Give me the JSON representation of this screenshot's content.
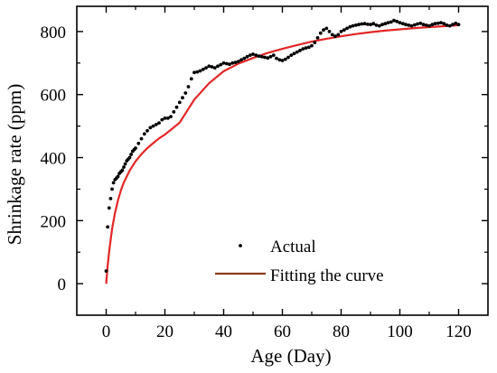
{
  "chart_data": {
    "type": "scatter",
    "title": "",
    "xlabel": "Age (Day)",
    "ylabel": "Shrinkage rate (ppm)",
    "xlim": [
      -10,
      130
    ],
    "ylim": [
      -100,
      880
    ],
    "x_ticks": [
      0,
      20,
      40,
      60,
      80,
      100,
      120
    ],
    "y_ticks": [
      0,
      200,
      400,
      600,
      800
    ],
    "grid": false,
    "legend_position": "bottom-right",
    "series": [
      {
        "name": "Actual",
        "kind": "scatter",
        "color": "#000000",
        "x": [
          0,
          0.5,
          1,
          1.5,
          2,
          2.5,
          3,
          3.5,
          4,
          4.5,
          5,
          5.5,
          6,
          6.5,
          7,
          7.5,
          8,
          8.5,
          9,
          9.5,
          10,
          11,
          12,
          13,
          14,
          15,
          16,
          17,
          18,
          19,
          20,
          21,
          22,
          23,
          24,
          25,
          26,
          27,
          28,
          29,
          30,
          31,
          32,
          33,
          34,
          35,
          36,
          37,
          38,
          39,
          40,
          41,
          42,
          43,
          44,
          45,
          46,
          47,
          48,
          49,
          50,
          51,
          52,
          53,
          54,
          55,
          56,
          57,
          58,
          59,
          60,
          61,
          62,
          63,
          64,
          65,
          66,
          67,
          68,
          69,
          70,
          71,
          72,
          73,
          74,
          75,
          76,
          77,
          78,
          79,
          80,
          81,
          82,
          83,
          84,
          85,
          86,
          87,
          88,
          89,
          90,
          91,
          92,
          93,
          94,
          95,
          96,
          97,
          98,
          99,
          100,
          101,
          102,
          103,
          104,
          105,
          106,
          107,
          108,
          109,
          110,
          111,
          112,
          113,
          114,
          115,
          116,
          117,
          118,
          119,
          120
        ],
        "y": [
          40,
          180,
          240,
          270,
          300,
          320,
          330,
          335,
          340,
          350,
          355,
          360,
          370,
          380,
          390,
          395,
          400,
          410,
          420,
          425,
          430,
          445,
          460,
          475,
          485,
          495,
          500,
          505,
          510,
          520,
          525,
          525,
          530,
          545,
          560,
          575,
          590,
          605,
          625,
          650,
          670,
          672,
          675,
          680,
          685,
          690,
          688,
          685,
          690,
          695,
          700,
          698,
          696,
          700,
          702,
          705,
          710,
          715,
          720,
          725,
          728,
          725,
          722,
          720,
          718,
          716,
          720,
          725,
          715,
          710,
          708,
          712,
          718,
          725,
          730,
          735,
          740,
          745,
          748,
          750,
          755,
          765,
          780,
          795,
          805,
          810,
          800,
          790,
          785,
          790,
          800,
          805,
          810,
          815,
          818,
          820,
          822,
          824,
          825,
          823,
          822,
          825,
          820,
          818,
          822,
          825,
          828,
          830,
          835,
          832,
          828,
          825,
          822,
          820,
          818,
          821,
          824,
          826,
          822,
          820,
          818,
          822,
          825,
          826,
          828,
          825,
          820,
          818,
          822,
          826,
          822
        ]
      },
      {
        "name": "Fitting the curve",
        "kind": "line",
        "color": "#e32626",
        "legend_color": "#8b3a1a",
        "x": [
          0,
          0.5,
          1,
          2,
          3,
          4,
          5,
          6,
          8,
          10,
          12,
          14,
          16,
          18,
          20,
          25,
          30,
          35,
          40,
          45,
          50,
          55,
          60,
          65,
          70,
          75,
          80,
          85,
          90,
          95,
          100,
          105,
          110,
          115,
          120
        ],
        "y": [
          0,
          56,
          102,
          173,
          225,
          264,
          296,
          321,
          359,
          388,
          411,
          430,
          446,
          461,
          473,
          511,
          584,
          636,
          674,
          698,
          716,
          732,
          745,
          757,
          768,
          777,
          785,
          792,
          798,
          803,
          807,
          811,
          814,
          817,
          820
        ]
      }
    ]
  }
}
